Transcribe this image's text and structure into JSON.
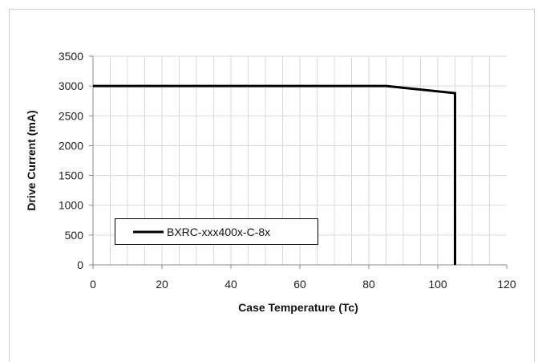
{
  "chart_data": {
    "type": "line",
    "title": "",
    "xlabel": "Case Temperature (Tc)",
    "ylabel": "Drive Current (mA)",
    "xlim": [
      0,
      120
    ],
    "ylim": [
      0,
      3500
    ],
    "x_ticks": [
      0,
      20,
      40,
      60,
      80,
      100,
      120
    ],
    "y_ticks": [
      0,
      500,
      1000,
      1500,
      2000,
      2500,
      3000,
      3500
    ],
    "x_minor_step": 5,
    "grid": true,
    "legend_position": "lower-left",
    "series": [
      {
        "name": "BXRC-xxx400x-C-8x",
        "color": "#000000",
        "x": [
          0,
          85,
          105,
          105
        ],
        "y": [
          3000,
          3000,
          2880,
          0
        ]
      }
    ]
  }
}
